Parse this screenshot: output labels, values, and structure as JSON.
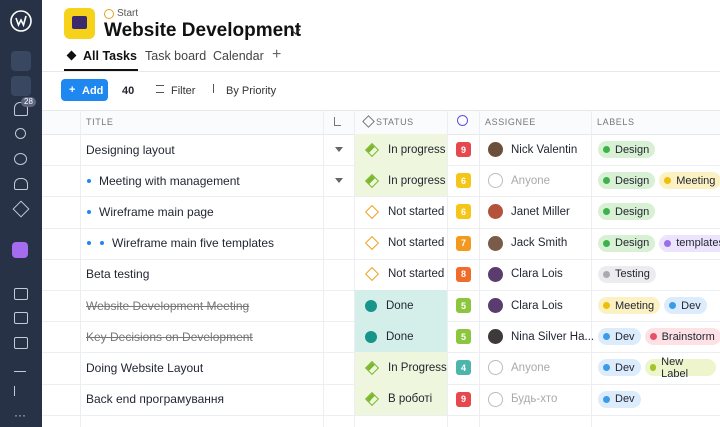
{
  "sidebar": {
    "notification_count": 28
  },
  "header": {
    "breadcrumb": "Start",
    "title": "Website Development"
  },
  "tabs": [
    {
      "label": "All Tasks",
      "active": true
    },
    {
      "label": "Task board"
    },
    {
      "label": "Calendar"
    }
  ],
  "toolbar": {
    "add": "Add",
    "task_count": 40,
    "filter": "Filter",
    "sort": "By Priority"
  },
  "table": {
    "columns": [
      "TITLE",
      "STATUS",
      "ASSIGNEE",
      "LABELS"
    ],
    "rows": [
      {
        "title": "Designing layout",
        "level": 0,
        "expand": true,
        "status": "In progress",
        "status_type": "in-progress",
        "priority": 9,
        "priority_color": "#e5484d",
        "assignee": "Nick Valentin",
        "avatar": "#6b4f3a",
        "labels": [
          {
            "text": "Design",
            "color": "green"
          }
        ]
      },
      {
        "title": "Meeting with management",
        "level": 1,
        "expand": true,
        "status": "In progress",
        "status_type": "in-progress",
        "priority": 6,
        "priority_color": "#f5c518",
        "assignee": "Anyone",
        "placeholder": true,
        "labels": [
          {
            "text": "Design",
            "color": "green"
          },
          {
            "text": "Meeting",
            "color": "yellow"
          }
        ]
      },
      {
        "title": "Wireframe main page",
        "level": 1,
        "status": "Not started",
        "status_type": "not-started",
        "priority": 6,
        "priority_color": "#f5c518",
        "assignee": "Janet Miller",
        "avatar": "#b5523b",
        "labels": [
          {
            "text": "Design",
            "color": "green"
          }
        ]
      },
      {
        "title": "Wireframe main five templates",
        "level": 2,
        "status": "Not started",
        "status_type": "not-started",
        "priority": 7,
        "priority_color": "#f39a1e",
        "assignee": "Jack Smith",
        "avatar": "#7a5a48",
        "labels": [
          {
            "text": "Design",
            "color": "green"
          },
          {
            "text": "templates",
            "color": "purple"
          }
        ]
      },
      {
        "title": "Beta testing",
        "level": 0,
        "status": "Not started",
        "status_type": "not-started",
        "priority": 8,
        "priority_color": "#ef6c2b",
        "assignee": "Clara Lois",
        "avatar": "#5a3d6e",
        "labels": [
          {
            "text": "Testing",
            "color": "gray"
          }
        ]
      },
      {
        "title": "Website Development Meeting",
        "level": 0,
        "done": true,
        "status": "Done",
        "status_type": "done",
        "priority": 5,
        "priority_color": "#8cc63f",
        "assignee": "Clara Lois",
        "avatar": "#5a3d6e",
        "labels": [
          {
            "text": "Meeting",
            "color": "yellow"
          },
          {
            "text": "Dev",
            "color": "blue"
          }
        ]
      },
      {
        "title": "Key Decisions on Development",
        "level": 0,
        "done": true,
        "status": "Done",
        "status_type": "done",
        "priority": 5,
        "priority_color": "#8cc63f",
        "assignee": "Nina Silver Ha...",
        "avatar": "#3e3a3a",
        "labels": [
          {
            "text": "Dev",
            "color": "blue"
          },
          {
            "text": "Brainstorm",
            "color": "pink"
          }
        ]
      },
      {
        "title": "Doing Website Layout",
        "level": 0,
        "status": "In Progress",
        "status_type": "in-progress",
        "priority": 4,
        "priority_color": "#4db6ac",
        "assignee": "Anyone",
        "placeholder": true,
        "labels": [
          {
            "text": "Dev",
            "color": "blue"
          },
          {
            "text": "New Label",
            "color": "lime"
          }
        ]
      },
      {
        "title": "Back end програмування",
        "level": 0,
        "status": "В роботі",
        "status_type": "in-progress",
        "priority": 9,
        "priority_color": "#e5484d",
        "assignee": "Будь-хто",
        "placeholder": true,
        "labels": [
          {
            "text": "Dev",
            "color": "blue"
          }
        ]
      }
    ]
  }
}
